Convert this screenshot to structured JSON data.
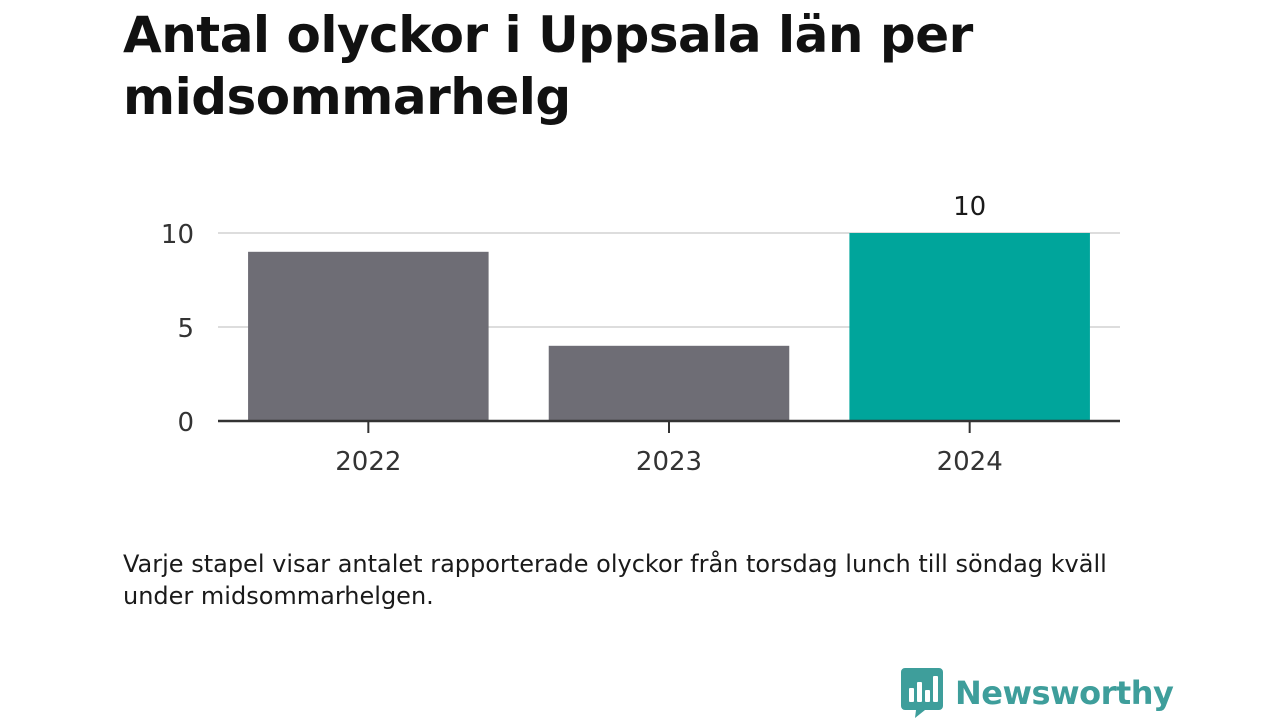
{
  "title": "Antal olyckor i Uppsala län per midsommarhelg",
  "footnote": "Varje stapel visar antalet rapporterade olyckor från torsdag lunch till söndag kväll under midsommarhelgen.",
  "brand": {
    "name": "Newsworthy",
    "icon": "newsworthy-logo-icon",
    "color": "#3e9e9b"
  },
  "colors": {
    "bar_default": "#6e6d75",
    "bar_highlight": "#00a59b",
    "gridline": "#dddddd",
    "axis": "#333333"
  },
  "chart_data": {
    "type": "bar",
    "title": "Antal olyckor i Uppsala län per midsommarhelg",
    "xlabel": "",
    "ylabel": "",
    "categories": [
      "2022",
      "2023",
      "2024"
    ],
    "values": [
      9,
      4,
      10
    ],
    "highlight_index": 2,
    "data_labels": [
      "",
      "",
      "10"
    ],
    "ylim": [
      0,
      10
    ],
    "yticks": [
      0,
      5,
      10
    ],
    "ytick_labels": [
      "0",
      "5",
      "10"
    ],
    "grid": true,
    "legend": "none"
  }
}
